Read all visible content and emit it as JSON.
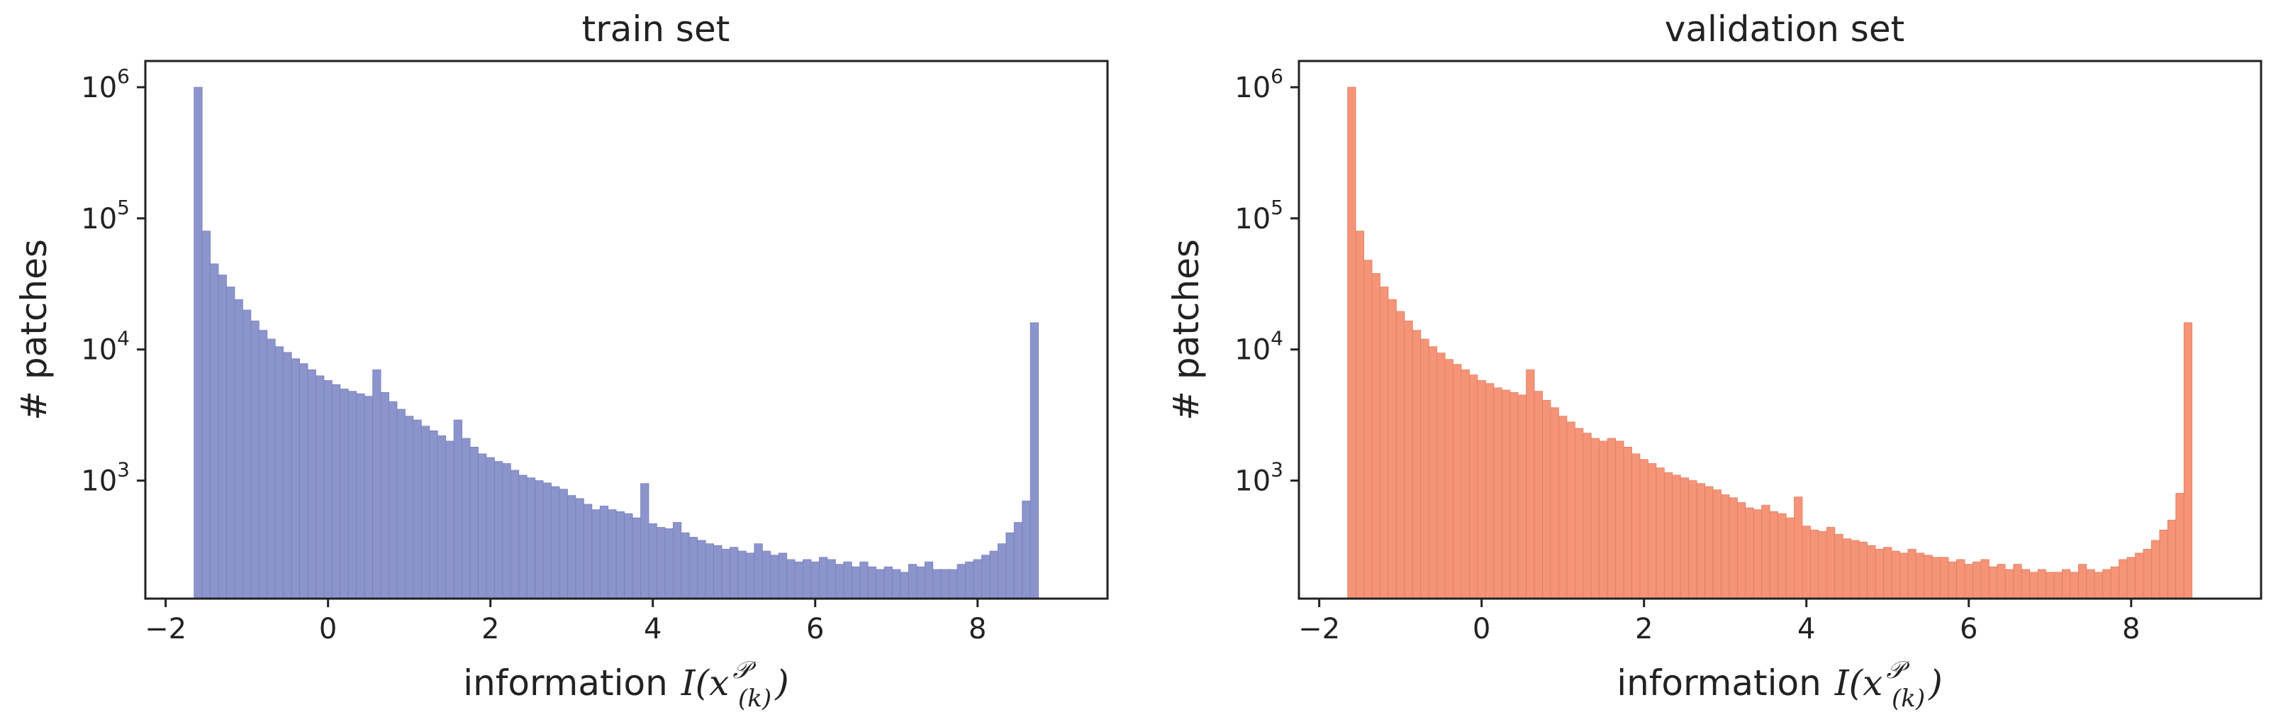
{
  "chart_data": [
    {
      "type": "histogram",
      "title": "train set",
      "xlabel": {
        "text": "information",
        "math": "I(x^P_(k))",
        "math_base": "I(x",
        "math_sup": "𝒫",
        "math_sub": "(k)",
        "math_close": ")"
      },
      "ylabel": "# patches",
      "xlim": [
        -2.25,
        9.6
      ],
      "ylim_log10": [
        2.1,
        6.2
      ],
      "yscale": "log",
      "xticks": [
        -2,
        0,
        2,
        4,
        6,
        8
      ],
      "xtick_labels": [
        "−2",
        "0",
        "2",
        "4",
        "6",
        "8"
      ],
      "yticks_exp": [
        3,
        4,
        5,
        6
      ],
      "ytick_base": "10",
      "ytick_exps": [
        "3",
        "4",
        "5",
        "6"
      ],
      "color": "#8c94cc",
      "edge_color": "#7780bd",
      "bin_start": -1.65,
      "bin_width": 0.1,
      "counts": [
        1000000,
        80000,
        45000,
        37000,
        30000,
        24000,
        20000,
        16500,
        14000,
        12000,
        10500,
        9500,
        8500,
        7800,
        7000,
        6300,
        5800,
        5400,
        5000,
        4800,
        4600,
        4400,
        7000,
        4700,
        4000,
        3500,
        3100,
        2900,
        2600,
        2400,
        2200,
        2000,
        2900,
        2100,
        1800,
        1600,
        1500,
        1400,
        1350,
        1200,
        1100,
        1050,
        1000,
        960,
        900,
        860,
        770,
        730,
        660,
        600,
        640,
        600,
        580,
        560,
        520,
        950,
        470,
        440,
        430,
        480,
        400,
        370,
        350,
        330,
        320,
        300,
        310,
        290,
        280,
        330,
        290,
        270,
        280,
        250,
        240,
        250,
        240,
        260,
        250,
        230,
        240,
        220,
        240,
        220,
        210,
        220,
        210,
        200,
        230,
        220,
        240,
        210,
        210,
        210,
        230,
        240,
        250,
        270,
        290,
        330,
        400,
        480,
        700,
        16000
      ]
    },
    {
      "type": "histogram",
      "title": "validation set",
      "xlabel": {
        "text": "information",
        "math": "I(x^P_(k))",
        "math_base": "I(x",
        "math_sup": "𝒫",
        "math_sub": "(k)",
        "math_close": ")"
      },
      "ylabel": "# patches",
      "xlim": [
        -2.25,
        9.6
      ],
      "ylim_log10": [
        2.1,
        6.2
      ],
      "yscale": "log",
      "xticks": [
        -2,
        0,
        2,
        4,
        6,
        8
      ],
      "xtick_labels": [
        "−2",
        "0",
        "2",
        "4",
        "6",
        "8"
      ],
      "yticks_exp": [
        3,
        4,
        5,
        6
      ],
      "ytick_base": "10",
      "ytick_exps": [
        "3",
        "4",
        "5",
        "6"
      ],
      "color": "#f69478",
      "edge_color": "#e07d62",
      "bin_start": -1.65,
      "bin_width": 0.1,
      "counts": [
        1000000,
        80000,
        48000,
        38000,
        30000,
        24000,
        19500,
        16500,
        14000,
        12000,
        10500,
        9400,
        8400,
        7700,
        7000,
        6400,
        5800,
        5500,
        5100,
        4900,
        4700,
        4500,
        7000,
        4800,
        4100,
        3600,
        3100,
        2800,
        2500,
        2300,
        2100,
        2000,
        2100,
        2000,
        1800,
        1600,
        1450,
        1350,
        1250,
        1150,
        1100,
        1050,
        1000,
        950,
        900,
        850,
        780,
        740,
        680,
        620,
        600,
        650,
        580,
        560,
        520,
        750,
        450,
        420,
        410,
        440,
        390,
        360,
        350,
        340,
        320,
        300,
        310,
        290,
        280,
        300,
        280,
        270,
        260,
        260,
        240,
        250,
        230,
        240,
        250,
        220,
        230,
        210,
        230,
        210,
        200,
        210,
        200,
        200,
        210,
        200,
        230,
        210,
        200,
        210,
        220,
        250,
        260,
        280,
        300,
        350,
        420,
        500,
        800,
        16000
      ]
    }
  ]
}
